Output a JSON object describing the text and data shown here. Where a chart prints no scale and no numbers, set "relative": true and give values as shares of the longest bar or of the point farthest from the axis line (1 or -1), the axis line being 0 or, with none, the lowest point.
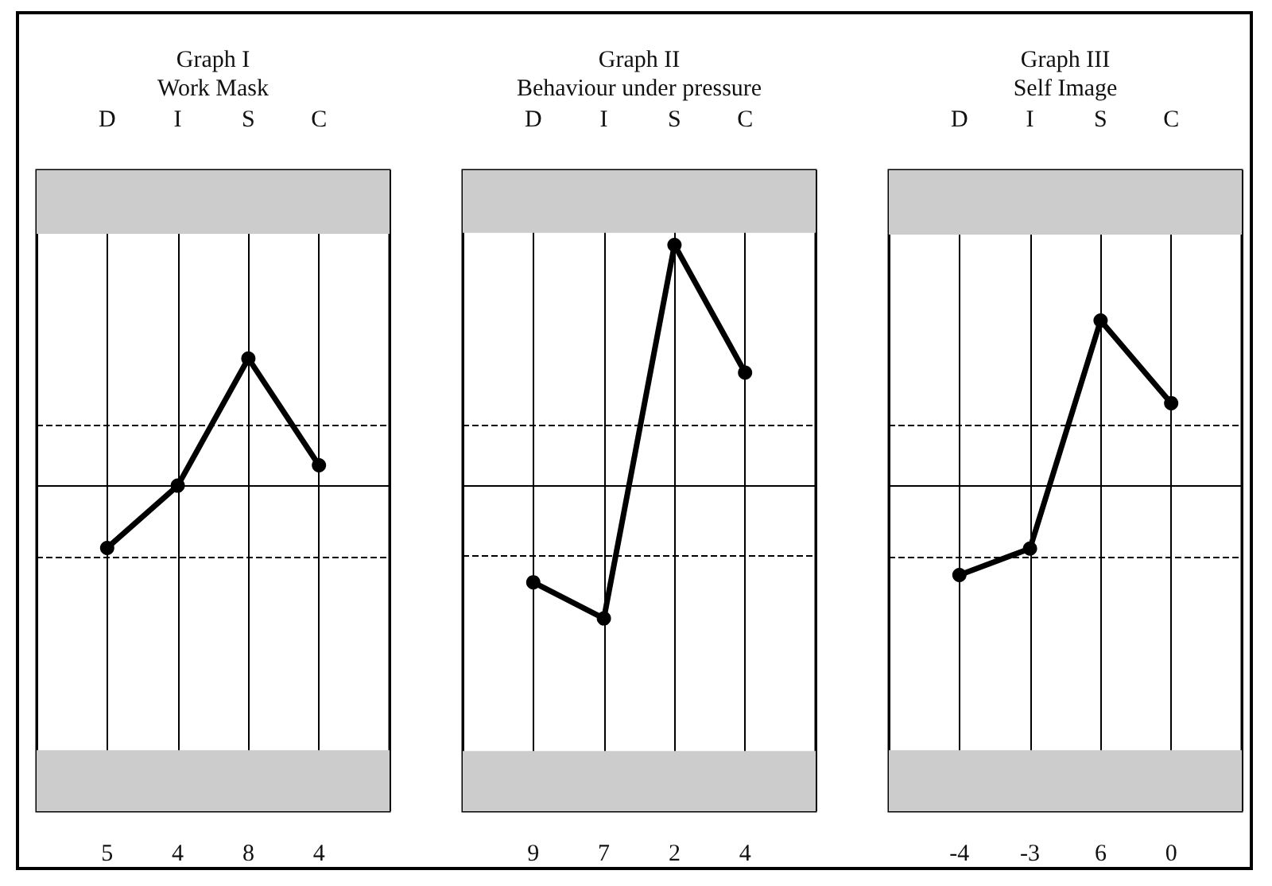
{
  "chart_data": [
    {
      "type": "line",
      "title": "Graph I",
      "subtitle": "Work Mask",
      "categories": [
        "D",
        "I",
        "S",
        "C"
      ],
      "relative": true,
      "marker": "circle",
      "tick_labels": "x",
      "grid": "x",
      "series": [
        {
          "color": "#000000",
          "values": [
            -0.49,
            0,
            1,
            0.16
          ]
        }
      ],
      "annotations": [
        "5",
        "4",
        "8",
        "4"
      ],
      "ref_lines": [
        {
          "axis": "y",
          "value": 0,
          "line_style": "solid",
          "color": "#000000"
        },
        {
          "axis": "y",
          "value": 0.48,
          "line_style": "dashed",
          "color": "#000000"
        },
        {
          "axis": "y",
          "value": -0.56,
          "line_style": "dashed",
          "color": "#000000"
        }
      ],
      "bands": [
        {
          "axis": "y",
          "from": 1.98,
          "to": 2.48,
          "color": "#cccccc"
        },
        {
          "axis": "y",
          "from": -2.56,
          "to": -2.08,
          "color": "#cccccc"
        }
      ]
    },
    {
      "type": "line",
      "title": "Graph II",
      "subtitle": "Behaviour under pressure",
      "categories": [
        "D",
        "I",
        "S",
        "C"
      ],
      "relative": true,
      "marker": "circle",
      "tick_labels": "x",
      "grid": "x",
      "series": [
        {
          "color": "#000000",
          "values": [
            -0.4,
            -0.55,
            1,
            0.47
          ]
        }
      ],
      "annotations": [
        "9",
        "7",
        "2",
        "4"
      ],
      "ref_lines": [
        {
          "axis": "y",
          "value": 0,
          "line_style": "solid",
          "color": "#000000"
        },
        {
          "axis": "y",
          "value": 0.25,
          "line_style": "dashed",
          "color": "#000000"
        },
        {
          "axis": "y",
          "value": -0.29,
          "line_style": "dashed",
          "color": "#000000"
        }
      ],
      "bands": [
        {
          "axis": "y",
          "from": 1.05,
          "to": 1.31,
          "color": "#cccccc"
        },
        {
          "axis": "y",
          "from": -1.35,
          "to": -1.1,
          "color": "#cccccc"
        }
      ]
    },
    {
      "type": "line",
      "title": "Graph III",
      "subtitle": "Self Image",
      "categories": [
        "D",
        "I",
        "S",
        "C"
      ],
      "relative": true,
      "marker": "circle",
      "tick_labels": "x",
      "grid": "x",
      "series": [
        {
          "color": "#000000",
          "values": [
            -0.54,
            -0.38,
            1,
            0.5
          ]
        }
      ],
      "annotations": [
        "-4",
        "-3",
        "6",
        "0"
      ],
      "ref_lines": [
        {
          "axis": "y",
          "value": 0,
          "line_style": "solid",
          "color": "#000000"
        },
        {
          "axis": "y",
          "value": 0.37,
          "line_style": "dashed",
          "color": "#000000"
        },
        {
          "axis": "y",
          "value": -0.43,
          "line_style": "dashed",
          "color": "#000000"
        }
      ],
      "bands": [
        {
          "axis": "y",
          "from": 1.52,
          "to": 1.91,
          "color": "#cccccc"
        },
        {
          "axis": "y",
          "from": -1.97,
          "to": -1.6,
          "color": "#cccccc"
        }
      ]
    }
  ]
}
